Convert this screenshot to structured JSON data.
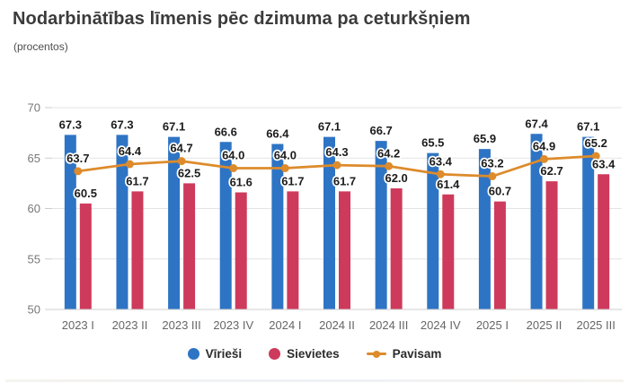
{
  "header": {
    "title": "Nodarbinātības līmenis pēc dzimuma pa ceturkšņiem",
    "subtitle": "(procentos)"
  },
  "colors": {
    "men": "#2e74c5",
    "women": "#ce3a5c",
    "total": "#dd8b2b",
    "grid": "#e4e4e4",
    "axis": "#cfcfcf",
    "tick": "#cccccc"
  },
  "chart_data": {
    "type": "bar",
    "title": "Nodarbinātības līmenis pēc dzimuma pa ceturkšņiem",
    "subtitle": "(procentos)",
    "categories": [
      "2023 I",
      "2023 II",
      "2023 III",
      "2023 IV",
      "2024 I",
      "2024 II",
      "2024 III",
      "2024 IV",
      "2025 I",
      "2025 II",
      "2025 III"
    ],
    "series": [
      {
        "name": "Vīrieši",
        "type": "bar",
        "color": "#2e74c5",
        "values": [
          67.3,
          67.3,
          67.1,
          66.6,
          66.4,
          67.1,
          66.7,
          65.5,
          65.9,
          67.4,
          67.1
        ]
      },
      {
        "name": "Sievietes",
        "type": "bar",
        "color": "#ce3a5c",
        "values": [
          60.5,
          61.7,
          62.5,
          61.6,
          61.7,
          61.7,
          62.0,
          61.4,
          60.7,
          62.7,
          63.4
        ]
      },
      {
        "name": "Pavisam",
        "type": "line",
        "color": "#dd8b2b",
        "values": [
          63.7,
          64.4,
          64.7,
          64.0,
          64.0,
          64.3,
          64.2,
          63.4,
          63.2,
          64.9,
          65.2
        ]
      }
    ],
    "xlabel": "",
    "ylabel": "",
    "ylim": [
      50,
      70
    ],
    "yticks": [
      50,
      55,
      60,
      65,
      70
    ],
    "grid": true,
    "data_labels": true,
    "legend_position": "bottom"
  }
}
